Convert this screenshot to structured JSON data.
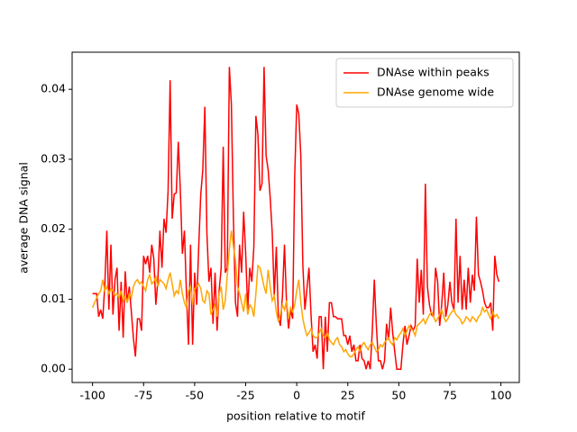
{
  "chart_data": {
    "type": "line",
    "xlabel": "position relative to motif",
    "ylabel": "average DNA signal",
    "x": [
      -100,
      -99,
      -98,
      -97,
      -96,
      -95,
      -94,
      -93,
      -92,
      -91,
      -90,
      -89,
      -88,
      -87,
      -86,
      -85,
      -84,
      -83,
      -82,
      -81,
      -80,
      -79,
      -78,
      -77,
      -76,
      -75,
      -74,
      -73,
      -72,
      -71,
      -70,
      -69,
      -68,
      -67,
      -66,
      -65,
      -64,
      -63,
      -62,
      -61,
      -60,
      -59,
      -58,
      -57,
      -56,
      -55,
      -54,
      -53,
      -52,
      -51,
      -50,
      -49,
      -48,
      -47,
      -46,
      -45,
      -44,
      -43,
      -42,
      -41,
      -40,
      -39,
      -38,
      -37,
      -36,
      -35,
      -34,
      -33,
      -32,
      -31,
      -30,
      -29,
      -28,
      -27,
      -26,
      -25,
      -24,
      -23,
      -22,
      -21,
      -20,
      -19,
      -18,
      -17,
      -16,
      -15,
      -14,
      -13,
      -12,
      -11,
      -10,
      -9,
      -8,
      -7,
      -6,
      -5,
      -4,
      -3,
      -2,
      -1,
      0,
      1,
      2,
      3,
      4,
      5,
      6,
      7,
      8,
      9,
      10,
      11,
      12,
      13,
      14,
      15,
      16,
      17,
      18,
      19,
      20,
      21,
      22,
      23,
      24,
      25,
      26,
      27,
      28,
      29,
      30,
      31,
      32,
      33,
      34,
      35,
      36,
      37,
      38,
      39,
      40,
      41,
      42,
      43,
      44,
      45,
      46,
      47,
      48,
      49,
      50,
      51,
      52,
      53,
      54,
      55,
      56,
      57,
      58,
      59,
      60,
      61,
      62,
      63,
      64,
      65,
      66,
      67,
      68,
      69,
      70,
      71,
      72,
      73,
      74,
      75,
      76,
      77,
      78,
      79,
      80,
      81,
      82,
      83,
      84,
      85,
      86,
      87,
      88,
      89,
      90,
      91,
      92,
      93,
      94,
      95,
      96,
      97,
      98,
      99
    ],
    "series": [
      {
        "name": "DNAse within peaks",
        "color": "#ff0000",
        "values": [
          0.0108,
          0.0108,
          0.0108,
          0.0075,
          0.0085,
          0.0072,
          0.012,
          0.0198,
          0.0085,
          0.0178,
          0.0078,
          0.0128,
          0.0145,
          0.0055,
          0.0125,
          0.0045,
          0.014,
          0.0095,
          0.0118,
          0.0082,
          0.0045,
          0.0018,
          0.0072,
          0.0072,
          0.0055,
          0.0162,
          0.015,
          0.0162,
          0.0138,
          0.0178,
          0.0158,
          0.0092,
          0.0128,
          0.0198,
          0.0145,
          0.0215,
          0.0195,
          0.0255,
          0.0413,
          0.0215,
          0.025,
          0.0252,
          0.0325,
          0.0255,
          0.0165,
          0.0198,
          0.0108,
          0.0035,
          0.0178,
          0.0035,
          0.0138,
          0.0092,
          0.0175,
          0.025,
          0.0285,
          0.0375,
          0.0195,
          0.0125,
          0.0145,
          0.0065,
          0.0138,
          0.0055,
          0.0112,
          0.0145,
          0.0318,
          0.0138,
          0.0145,
          0.0432,
          0.0378,
          0.0215,
          0.0095,
          0.0075,
          0.0178,
          0.0138,
          0.0225,
          0.0165,
          0.0085,
          0.0145,
          0.0125,
          0.0175,
          0.0362,
          0.0335,
          0.0255,
          0.0265,
          0.0432,
          0.0305,
          0.0285,
          0.0245,
          0.0195,
          0.0105,
          0.0175,
          0.0075,
          0.0062,
          0.0105,
          0.0178,
          0.0095,
          0.0058,
          0.0085,
          0.0072,
          0.0275,
          0.0378,
          0.0365,
          0.0305,
          0.0148,
          0.0085,
          0.0115,
          0.0145,
          0.0078,
          0.0025,
          0.0035,
          0.0015,
          0.0075,
          0.0075,
          0.0,
          0.0075,
          0.0025,
          0.0095,
          0.0095,
          0.0075,
          0.0075,
          0.0072,
          0.0072,
          0.0072,
          0.0048,
          0.0048,
          0.0035,
          0.0048,
          0.0025,
          0.0035,
          0.0012,
          0.0012,
          0.0035,
          0.0015,
          0.0012,
          0.0,
          0.0012,
          0.0,
          0.0055,
          0.0128,
          0.0062,
          0.0012,
          0.0012,
          0.0,
          0.0012,
          0.0065,
          0.0042,
          0.0088,
          0.0052,
          0.0025,
          0.0,
          0.0,
          0.0,
          0.0035,
          0.0062,
          0.0035,
          0.0048,
          0.0062,
          0.0055,
          0.0062,
          0.0158,
          0.0095,
          0.0142,
          0.0078,
          0.0265,
          0.0118,
          0.0092,
          0.0078,
          0.0075,
          0.0145,
          0.0125,
          0.0062,
          0.0092,
          0.0138,
          0.0075,
          0.0092,
          0.0125,
          0.0095,
          0.0085,
          0.0215,
          0.0095,
          0.0162,
          0.0085,
          0.0128,
          0.0085,
          0.0145,
          0.0095,
          0.0135,
          0.0112,
          0.0218,
          0.0135,
          0.0125,
          0.0112,
          0.0095,
          0.0088,
          0.0088,
          0.0095,
          0.0055,
          0.0162,
          0.0135,
          0.0125
        ]
      },
      {
        "name": "DNAse genome wide",
        "color": "#ffa500",
        "values": [
          0.0088,
          0.0095,
          0.0102,
          0.0108,
          0.0112,
          0.0128,
          0.0112,
          0.0118,
          0.0108,
          0.0115,
          0.0112,
          0.0105,
          0.0108,
          0.0102,
          0.0112,
          0.0098,
          0.0105,
          0.0095,
          0.0108,
          0.0102,
          0.0118,
          0.0125,
          0.0128,
          0.0122,
          0.0125,
          0.0118,
          0.0112,
          0.0128,
          0.0135,
          0.0122,
          0.0125,
          0.0132,
          0.0118,
          0.0128,
          0.0125,
          0.0122,
          0.0115,
          0.0128,
          0.0138,
          0.0122,
          0.0105,
          0.0112,
          0.0108,
          0.0128,
          0.0108,
          0.0095,
          0.0088,
          0.0112,
          0.0118,
          0.0092,
          0.0115,
          0.0118,
          0.0122,
          0.0115,
          0.0098,
          0.0095,
          0.0112,
          0.0108,
          0.0078,
          0.0085,
          0.0092,
          0.0075,
          0.0108,
          0.0118,
          0.0085,
          0.0098,
          0.0135,
          0.0172,
          0.0198,
          0.0175,
          0.0155,
          0.0118,
          0.0108,
          0.0095,
          0.0082,
          0.0108,
          0.0078,
          0.0092,
          0.0088,
          0.0075,
          0.0108,
          0.0148,
          0.0145,
          0.0132,
          0.0118,
          0.0108,
          0.0142,
          0.0118,
          0.0098,
          0.0105,
          0.0082,
          0.0068,
          0.0078,
          0.0092,
          0.0085,
          0.0098,
          0.0072,
          0.0088,
          0.0082,
          0.0092,
          0.0112,
          0.0128,
          0.0095,
          0.0072,
          0.0058,
          0.0048,
          0.0052,
          0.0058,
          0.0048,
          0.0045,
          0.0045,
          0.0052,
          0.0058,
          0.0048,
          0.0045,
          0.0052,
          0.0042,
          0.0038,
          0.0035,
          0.0042,
          0.0045,
          0.0035,
          0.0032,
          0.0025,
          0.0028,
          0.0022,
          0.0018,
          0.0018,
          0.0022,
          0.0028,
          0.0032,
          0.0025,
          0.0035,
          0.0038,
          0.0032,
          0.0028,
          0.0035,
          0.0038,
          0.0032,
          0.0025,
          0.0028,
          0.0035,
          0.0032,
          0.0038,
          0.0042,
          0.0045,
          0.0038,
          0.0035,
          0.0045,
          0.0042,
          0.0048,
          0.0052,
          0.0058,
          0.0048,
          0.0055,
          0.0062,
          0.0058,
          0.0055,
          0.0048,
          0.0062,
          0.0065,
          0.0068,
          0.0072,
          0.0065,
          0.0072,
          0.0078,
          0.0082,
          0.0075,
          0.0068,
          0.0072,
          0.0078,
          0.0085,
          0.0075,
          0.0068,
          0.0072,
          0.0078,
          0.0082,
          0.0085,
          0.0078,
          0.0075,
          0.0072,
          0.0065,
          0.0068,
          0.0075,
          0.0072,
          0.0068,
          0.0075,
          0.0072,
          0.0068,
          0.0075,
          0.0078,
          0.0088,
          0.0082,
          0.0085,
          0.0078,
          0.0072,
          0.0082,
          0.0075,
          0.0078,
          0.0072
        ]
      }
    ],
    "xlim": [
      -110,
      109
    ],
    "ylim": [
      -0.0019,
      0.0453
    ],
    "xticks": [
      -100,
      -75,
      -50,
      -25,
      0,
      25,
      50,
      75,
      100
    ],
    "yticks": [
      {
        "value": 0,
        "label": "0.00"
      },
      0.01,
      0.02,
      0.03,
      0.04
    ],
    "legend": "upper right"
  }
}
